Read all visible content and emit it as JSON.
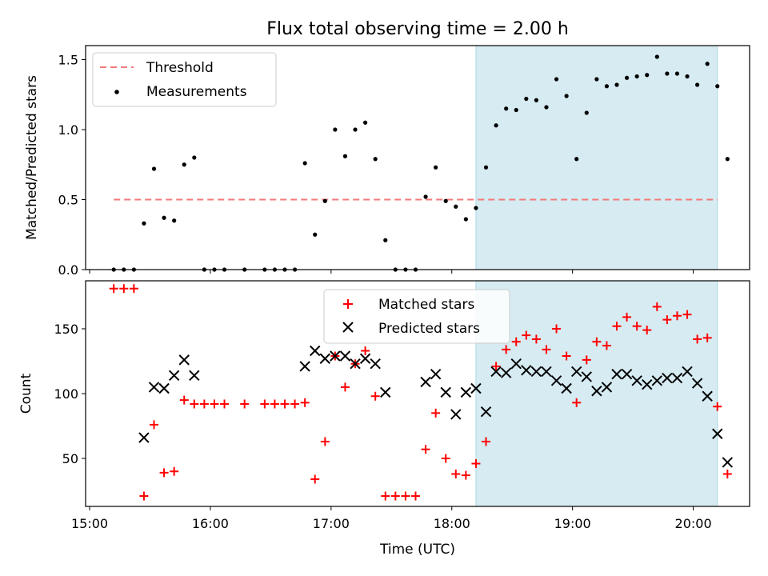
{
  "chart_data": [
    {
      "type": "scatter",
      "title": "Flux total observing time = 2.00 h",
      "xlabel": "",
      "ylabel": "Matched/Predicted stars",
      "xlim": [
        "14:58",
        "20:28"
      ],
      "ylim": [
        0,
        1.6
      ],
      "yticks": [
        0.0,
        0.5,
        1.0,
        1.5
      ],
      "ytick_labels": [
        "0.0",
        "0.5",
        "1.0",
        "1.5"
      ],
      "grid": false,
      "legend_position": "top-left",
      "shaded_span": {
        "x": [
          "18:12",
          "20:12"
        ],
        "color": "#add8e6"
      },
      "threshold": {
        "name": "Threshold",
        "y": 0.5,
        "x": [
          "15:12",
          "20:12"
        ],
        "color": "#f47a7a"
      },
      "series": [
        {
          "name": "Measurements",
          "color": "#000000",
          "marker": "dot",
          "points": [
            [
              "15:12",
              0.0
            ],
            [
              "15:17",
              0.0
            ],
            [
              "15:22",
              0.0
            ],
            [
              "15:27",
              0.33
            ],
            [
              "15:32",
              0.72
            ],
            [
              "15:37",
              0.37
            ],
            [
              "15:42",
              0.35
            ],
            [
              "15:47",
              0.75
            ],
            [
              "15:52",
              0.8
            ],
            [
              "15:57",
              0.0
            ],
            [
              "16:02",
              0.0
            ],
            [
              "16:07",
              0.0
            ],
            [
              "16:17",
              0.0
            ],
            [
              "16:27",
              0.0
            ],
            [
              "16:32",
              0.0
            ],
            [
              "16:37",
              0.0
            ],
            [
              "16:42",
              0.0
            ],
            [
              "16:47",
              0.76
            ],
            [
              "16:52",
              0.25
            ],
            [
              "16:57",
              0.49
            ],
            [
              "17:02",
              1.0
            ],
            [
              "17:07",
              0.81
            ],
            [
              "17:12",
              1.0
            ],
            [
              "17:17",
              1.05
            ],
            [
              "17:22",
              0.79
            ],
            [
              "17:27",
              0.21
            ],
            [
              "17:32",
              0.0
            ],
            [
              "17:37",
              0.0
            ],
            [
              "17:42",
              0.0
            ],
            [
              "17:47",
              0.52
            ],
            [
              "17:52",
              0.73
            ],
            [
              "17:57",
              0.49
            ],
            [
              "18:02",
              0.45
            ],
            [
              "18:07",
              0.36
            ],
            [
              "18:12",
              0.44
            ],
            [
              "18:17",
              0.73
            ],
            [
              "18:22",
              1.03
            ],
            [
              "18:27",
              1.15
            ],
            [
              "18:32",
              1.14
            ],
            [
              "18:37",
              1.22
            ],
            [
              "18:42",
              1.21
            ],
            [
              "18:47",
              1.16
            ],
            [
              "18:52",
              1.36
            ],
            [
              "18:57",
              1.24
            ],
            [
              "19:02",
              0.79
            ],
            [
              "19:07",
              1.12
            ],
            [
              "19:12",
              1.36
            ],
            [
              "19:17",
              1.31
            ],
            [
              "19:22",
              1.32
            ],
            [
              "19:27",
              1.37
            ],
            [
              "19:32",
              1.38
            ],
            [
              "19:37",
              1.39
            ],
            [
              "19:42",
              1.52
            ],
            [
              "19:47",
              1.4
            ],
            [
              "19:52",
              1.4
            ],
            [
              "19:57",
              1.38
            ],
            [
              "20:02",
              1.32
            ],
            [
              "20:07",
              1.47
            ],
            [
              "20:12",
              1.31
            ],
            [
              "20:17",
              0.79
            ]
          ]
        }
      ]
    },
    {
      "type": "scatter",
      "title": "",
      "xlabel": "Time (UTC)",
      "ylabel": "Count",
      "xlim": [
        "14:58",
        "20:28"
      ],
      "ylim": [
        13,
        187
      ],
      "xticks": [
        "15:00",
        "16:00",
        "17:00",
        "18:00",
        "19:00",
        "20:00"
      ],
      "yticks": [
        50,
        100,
        150
      ],
      "ytick_labels": [
        "50",
        "100",
        "150"
      ],
      "grid": false,
      "legend_position": "top-center",
      "shaded_span": {
        "x": [
          "18:12",
          "20:12"
        ],
        "color": "#add8e6"
      },
      "series": [
        {
          "name": "Matched stars",
          "color": "#ff0000",
          "marker": "plus",
          "points": [
            [
              "15:12",
              181
            ],
            [
              "15:17",
              181
            ],
            [
              "15:22",
              181
            ],
            [
              "15:27",
              21
            ],
            [
              "15:32",
              76
            ],
            [
              "15:37",
              39
            ],
            [
              "15:42",
              40
            ],
            [
              "15:47",
              95
            ],
            [
              "15:52",
              92
            ],
            [
              "15:57",
              92
            ],
            [
              "16:02",
              92
            ],
            [
              "16:07",
              92
            ],
            [
              "16:17",
              92
            ],
            [
              "16:27",
              92
            ],
            [
              "16:32",
              92
            ],
            [
              "16:37",
              92
            ],
            [
              "16:42",
              92
            ],
            [
              "16:47",
              93
            ],
            [
              "16:52",
              34
            ],
            [
              "16:57",
              63
            ],
            [
              "17:02",
              129
            ],
            [
              "17:07",
              105
            ],
            [
              "17:12",
              123
            ],
            [
              "17:17",
              133
            ],
            [
              "17:22",
              98
            ],
            [
              "17:27",
              21
            ],
            [
              "17:32",
              21
            ],
            [
              "17:37",
              21
            ],
            [
              "17:42",
              21
            ],
            [
              "17:47",
              57
            ],
            [
              "17:52",
              85
            ],
            [
              "17:57",
              50
            ],
            [
              "18:02",
              38
            ],
            [
              "18:07",
              37
            ],
            [
              "18:12",
              46
            ],
            [
              "18:17",
              63
            ],
            [
              "18:22",
              121
            ],
            [
              "18:27",
              134
            ],
            [
              "18:32",
              140
            ],
            [
              "18:37",
              145
            ],
            [
              "18:42",
              142
            ],
            [
              "18:47",
              134
            ],
            [
              "18:52",
              150
            ],
            [
              "18:57",
              129
            ],
            [
              "19:02",
              93
            ],
            [
              "19:07",
              126
            ],
            [
              "19:12",
              140
            ],
            [
              "19:17",
              137
            ],
            [
              "19:22",
              152
            ],
            [
              "19:27",
              159
            ],
            [
              "19:32",
              152
            ],
            [
              "19:37",
              149
            ],
            [
              "19:42",
              167
            ],
            [
              "19:47",
              157
            ],
            [
              "19:52",
              160
            ],
            [
              "19:57",
              161
            ],
            [
              "20:02",
              142
            ],
            [
              "20:07",
              143
            ],
            [
              "20:12",
              90
            ],
            [
              "20:17",
              38
            ]
          ]
        },
        {
          "name": "Predicted stars",
          "color": "#000000",
          "marker": "x",
          "points": [
            [
              "15:27",
              66
            ],
            [
              "15:32",
              105
            ],
            [
              "15:37",
              104
            ],
            [
              "15:42",
              114
            ],
            [
              "15:47",
              126
            ],
            [
              "15:52",
              114
            ],
            [
              "16:47",
              121
            ],
            [
              "16:52",
              133
            ],
            [
              "16:57",
              127
            ],
            [
              "17:02",
              129
            ],
            [
              "17:07",
              129
            ],
            [
              "17:12",
              123
            ],
            [
              "17:17",
              127
            ],
            [
              "17:22",
              123
            ],
            [
              "17:27",
              101
            ],
            [
              "17:47",
              109
            ],
            [
              "17:52",
              115
            ],
            [
              "17:57",
              101
            ],
            [
              "18:02",
              84
            ],
            [
              "18:07",
              101
            ],
            [
              "18:12",
              104
            ],
            [
              "18:17",
              86
            ],
            [
              "18:22",
              117
            ],
            [
              "18:27",
              116
            ],
            [
              "18:32",
              123
            ],
            [
              "18:37",
              118
            ],
            [
              "18:42",
              117
            ],
            [
              "18:47",
              117
            ],
            [
              "18:52",
              110
            ],
            [
              "18:57",
              104
            ],
            [
              "19:02",
              117
            ],
            [
              "19:07",
              113
            ],
            [
              "19:12",
              102
            ],
            [
              "19:17",
              105
            ],
            [
              "19:22",
              115
            ],
            [
              "19:27",
              115
            ],
            [
              "19:32",
              110
            ],
            [
              "19:37",
              107
            ],
            [
              "19:42",
              110
            ],
            [
              "19:47",
              112
            ],
            [
              "19:52",
              112
            ],
            [
              "19:57",
              117
            ],
            [
              "20:02",
              108
            ],
            [
              "20:07",
              98
            ],
            [
              "20:12",
              69
            ],
            [
              "20:17",
              47
            ]
          ]
        }
      ]
    }
  ]
}
